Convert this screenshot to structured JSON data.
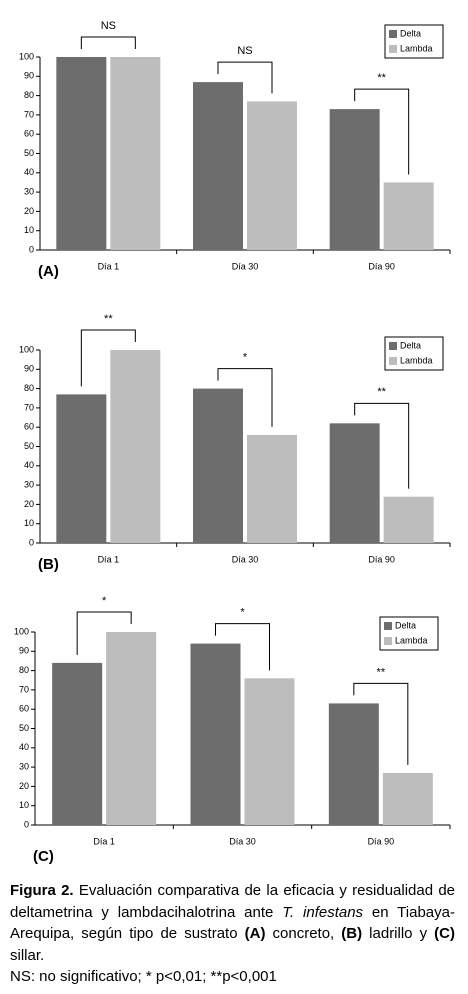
{
  "chart_data": [
    {
      "type": "bar",
      "panel_label": "(A)",
      "categories": [
        "Día 1",
        "Día 30",
        "Día 90"
      ],
      "series": [
        {
          "name": "Delta",
          "color": "#6d6d6d",
          "values": [
            100,
            87,
            73
          ]
        },
        {
          "name": "Lambda",
          "color": "#bdbdbd",
          "values": [
            100,
            77,
            35
          ]
        }
      ],
      "annotations": [
        "NS",
        "NS",
        "**"
      ],
      "ylim": [
        0,
        100
      ],
      "yticks": [
        0,
        10,
        20,
        30,
        40,
        50,
        60,
        70,
        80,
        90,
        100
      ],
      "legend": "upper right",
      "grid": false
    },
    {
      "type": "bar",
      "panel_label": "(B)",
      "categories": [
        "Día 1",
        "Día 30",
        "Día 90"
      ],
      "series": [
        {
          "name": "Delta",
          "color": "#6d6d6d",
          "values": [
            77,
            80,
            62
          ]
        },
        {
          "name": "Lambda",
          "color": "#bdbdbd",
          "values": [
            100,
            56,
            24
          ]
        }
      ],
      "annotations": [
        "**",
        "*",
        "**"
      ],
      "ylim": [
        0,
        100
      ],
      "yticks": [
        0,
        10,
        20,
        30,
        40,
        50,
        60,
        70,
        80,
        90,
        100
      ],
      "legend": "upper right",
      "grid": false
    },
    {
      "type": "bar",
      "panel_label": "(C)",
      "categories": [
        "Día 1",
        "Día 30",
        "Día 90"
      ],
      "series": [
        {
          "name": "Delta",
          "color": "#6d6d6d",
          "values": [
            84,
            94,
            63
          ]
        },
        {
          "name": "Lambda",
          "color": "#bdbdbd",
          "values": [
            100,
            76,
            27
          ]
        }
      ],
      "annotations": [
        "*",
        "*",
        "**"
      ],
      "ylim": [
        0,
        100
      ],
      "yticks": [
        0,
        10,
        20,
        30,
        40,
        50,
        60,
        70,
        80,
        90,
        100
      ],
      "legend": "upper right",
      "grid": false
    }
  ],
  "caption": {
    "parts": [
      "Figura 2.",
      " Evaluación comparativa de la eficacia y residualidad de deltametrina y lambdacihalotrina ante ",
      "T. infestans",
      " en Tiabaya-Arequipa, según tipo de sustrato ",
      "(A)",
      " concreto, ",
      "(B)",
      " ladrillo y ",
      "(C)",
      " sillar."
    ],
    "note": "NS: no significativo; * p<0,01; **p<0,001"
  }
}
